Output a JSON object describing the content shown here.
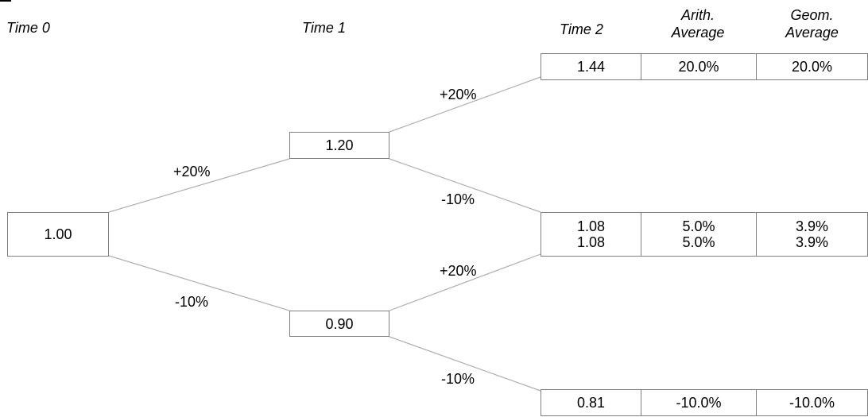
{
  "headers": {
    "time0": "Time 0",
    "time1": "Time 1",
    "time2": "Time 2",
    "arith_line1": "Arith.",
    "arith_line2": "Average",
    "geom_line1": "Geom.",
    "geom_line2": "Average"
  },
  "nodes": {
    "t0": "1.00",
    "t1_up": "1.20",
    "t1_down": "0.90"
  },
  "outcomes": [
    {
      "value": "1.44",
      "arith": "20.0%",
      "geom": "20.0%"
    },
    {
      "value": "1.08",
      "arith": "5.0%",
      "geom": "3.9%"
    },
    {
      "value": "1.08",
      "arith": "5.0%",
      "geom": "3.9%"
    },
    {
      "value": "0.81",
      "arith": "-10.0%",
      "geom": "-10.0%"
    }
  ],
  "edge_labels": {
    "t0_up": "+20%",
    "t0_down": "-10%",
    "up_up": "+20%",
    "up_down": "-10%",
    "down_up": "+20%",
    "down_down": "-10%"
  },
  "colors": {
    "line": "#b0b0b0",
    "border": "#7f7f7f",
    "text": "#000000"
  }
}
